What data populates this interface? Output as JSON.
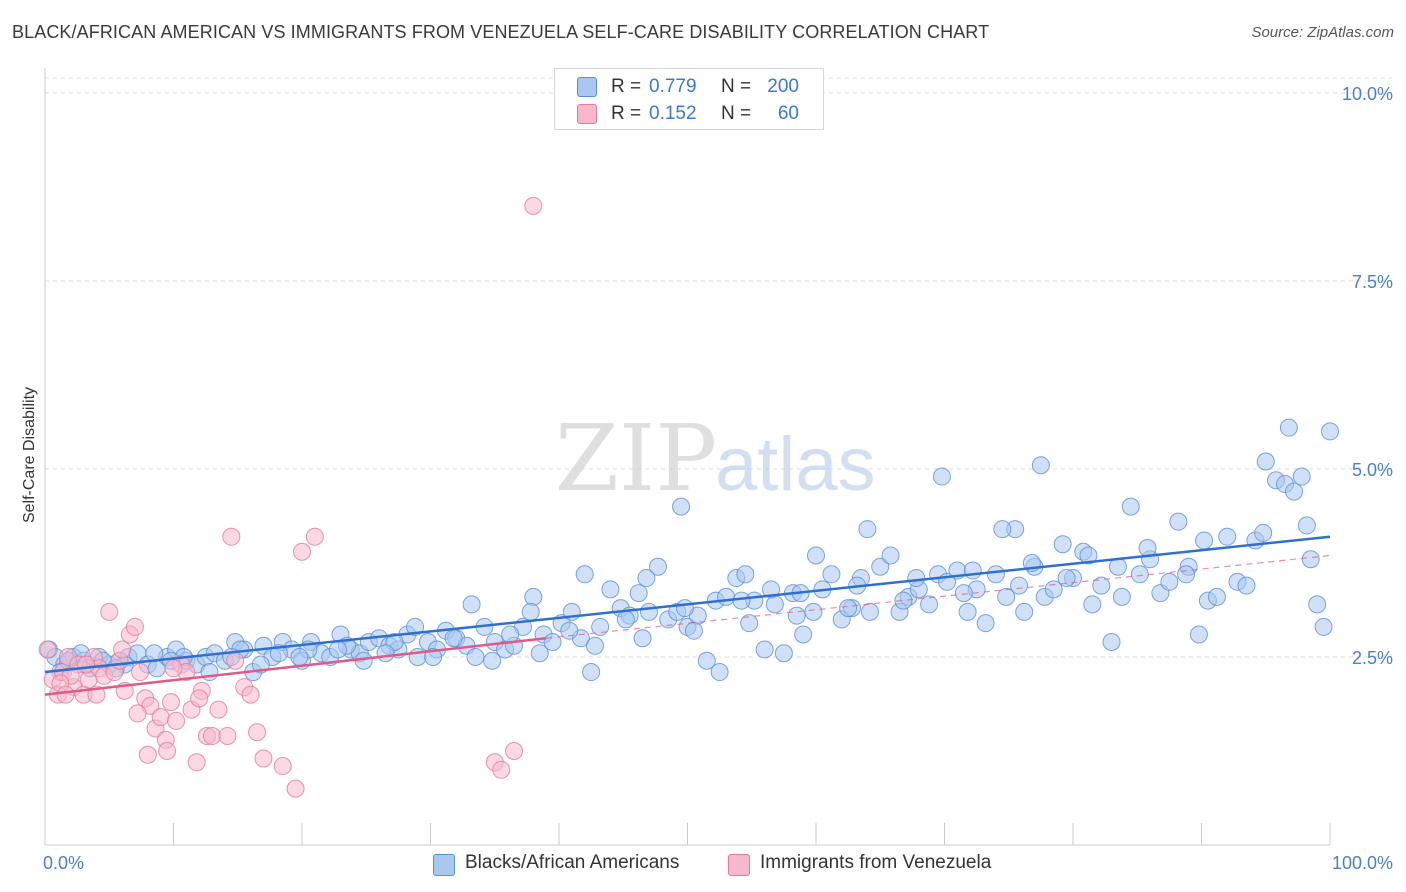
{
  "title": "BLACK/AFRICAN AMERICAN VS IMMIGRANTS FROM VENEZUELA SELF-CARE DISABILITY CORRELATION CHART",
  "source": "Source: ZipAtlas.com",
  "watermark": {
    "zip": "ZIP",
    "atlas": "atlas"
  },
  "legend": {
    "rows": [
      {
        "r_label": "R =",
        "r_value": "0.779",
        "n_label": "N =",
        "n_value": "200",
        "color": "#a9c8f0",
        "border": "#5b8fd6"
      },
      {
        "r_label": "R =",
        "r_value": "0.152",
        "n_label": "N =",
        "n_value": "60",
        "color": "#f7b8cc",
        "border": "#e07a9c"
      }
    ]
  },
  "chart_data": {
    "type": "scatter",
    "ylabel": "Self-Care Disability",
    "x_tick_labels": [
      "0.0%",
      "100.0%"
    ],
    "y_tick_labels": [
      "2.5%",
      "5.0%",
      "7.5%",
      "10.0%"
    ],
    "y_ticks": [
      2.5,
      5.0,
      7.5,
      10.0
    ],
    "xlim": [
      0,
      100
    ],
    "ylim": [
      0,
      10.2
    ],
    "grid": "dashed horizontal",
    "legend_placement": "top-center and bottom",
    "series": [
      {
        "name": "Blacks/African Americans",
        "color": "#a9c8f0",
        "edge": "#5b8fd6",
        "trend_color": "#2f6fd0",
        "trend": {
          "x0": 0,
          "y0": 2.3,
          "x1": 100,
          "y1": 4.1
        },
        "points": [
          [
            0.3,
            2.6
          ],
          [
            0.8,
            2.5
          ],
          [
            1.5,
            2.4
          ],
          [
            2.2,
            2.5
          ],
          [
            3,
            2.45
          ],
          [
            3.5,
            2.35
          ],
          [
            4.2,
            2.5
          ],
          [
            5,
            2.4
          ],
          [
            5.8,
            2.45
          ],
          [
            6.5,
            2.5
          ],
          [
            7.2,
            2.55
          ],
          [
            8,
            2.4
          ],
          [
            8.7,
            2.35
          ],
          [
            9.5,
            2.5
          ],
          [
            10.2,
            2.6
          ],
          [
            11,
            2.45
          ],
          [
            11.8,
            2.4
          ],
          [
            12.5,
            2.5
          ],
          [
            13.2,
            2.55
          ],
          [
            14,
            2.45
          ],
          [
            14.8,
            2.7
          ],
          [
            15.5,
            2.6
          ],
          [
            16.2,
            2.3
          ],
          [
            17,
            2.65
          ],
          [
            17.7,
            2.5
          ],
          [
            18.5,
            2.7
          ],
          [
            19.2,
            2.6
          ],
          [
            20,
            2.45
          ],
          [
            20.7,
            2.7
          ],
          [
            21.5,
            2.55
          ],
          [
            22.2,
            2.5
          ],
          [
            23,
            2.8
          ],
          [
            23.8,
            2.6
          ],
          [
            24.5,
            2.55
          ],
          [
            25.2,
            2.7
          ],
          [
            26,
            2.75
          ],
          [
            26.8,
            2.65
          ],
          [
            27.5,
            2.6
          ],
          [
            28.2,
            2.8
          ],
          [
            29,
            2.5
          ],
          [
            29.8,
            2.7
          ],
          [
            30.5,
            2.6
          ],
          [
            31.2,
            2.85
          ],
          [
            32,
            2.75
          ],
          [
            32.8,
            2.65
          ],
          [
            33.5,
            2.5
          ],
          [
            34.2,
            2.9
          ],
          [
            35,
            2.7
          ],
          [
            35.8,
            2.6
          ],
          [
            36.5,
            2.65
          ],
          [
            37.2,
            2.9
          ],
          [
            38,
            3.3
          ],
          [
            38.8,
            2.8
          ],
          [
            39.5,
            2.7
          ],
          [
            40.2,
            2.95
          ],
          [
            41,
            3.1
          ],
          [
            41.7,
            2.75
          ],
          [
            42.5,
            2.3
          ],
          [
            43.2,
            2.9
          ],
          [
            44,
            3.4
          ],
          [
            44.8,
            3.15
          ],
          [
            45.5,
            3.05
          ],
          [
            46.2,
            3.35
          ],
          [
            47,
            3.1
          ],
          [
            47.7,
            3.7
          ],
          [
            48.5,
            3.0
          ],
          [
            49.2,
            3.1
          ],
          [
            50,
            2.9
          ],
          [
            50.8,
            3.05
          ],
          [
            51.5,
            2.45
          ],
          [
            52.2,
            3.25
          ],
          [
            53,
            3.3
          ],
          [
            53.8,
            3.55
          ],
          [
            54.5,
            3.6
          ],
          [
            55.2,
            3.25
          ],
          [
            56,
            2.6
          ],
          [
            56.8,
            3.2
          ],
          [
            57.5,
            2.55
          ],
          [
            58.2,
            3.35
          ],
          [
            49.5,
            4.5
          ],
          [
            59,
            2.8
          ],
          [
            59.8,
            3.1
          ],
          [
            60.5,
            3.4
          ],
          [
            61.2,
            3.6
          ],
          [
            62,
            3.0
          ],
          [
            62.8,
            3.15
          ],
          [
            63.5,
            3.55
          ],
          [
            64.2,
            3.1
          ],
          [
            65,
            3.7
          ],
          [
            65.8,
            3.85
          ],
          [
            66.5,
            3.1
          ],
          [
            67.2,
            3.3
          ],
          [
            68,
            3.4
          ],
          [
            68.8,
            3.2
          ],
          [
            69.5,
            3.6
          ],
          [
            70.2,
            3.5
          ],
          [
            71,
            3.65
          ],
          [
            71.8,
            3.1
          ],
          [
            72.5,
            3.4
          ],
          [
            73.2,
            2.95
          ],
          [
            74,
            3.6
          ],
          [
            74.8,
            3.3
          ],
          [
            75.5,
            4.2
          ],
          [
            76.2,
            3.1
          ],
          [
            77,
            3.7
          ],
          [
            77.8,
            3.3
          ],
          [
            78.5,
            3.4
          ],
          [
            79.2,
            4.0
          ],
          [
            80,
            3.55
          ],
          [
            80.8,
            3.9
          ],
          [
            81.5,
            3.2
          ],
          [
            82.2,
            3.45
          ],
          [
            83,
            2.7
          ],
          [
            83.8,
            3.3
          ],
          [
            84.5,
            4.5
          ],
          [
            85.2,
            3.6
          ],
          [
            86,
            3.8
          ],
          [
            86.8,
            3.35
          ],
          [
            87.5,
            3.5
          ],
          [
            88.2,
            4.3
          ],
          [
            89,
            3.7
          ],
          [
            89.8,
            2.8
          ],
          [
            90.5,
            3.25
          ],
          [
            91.2,
            3.3
          ],
          [
            92,
            4.1
          ],
          [
            92.8,
            3.5
          ],
          [
            93.5,
            3.45
          ],
          [
            94.2,
            4.05
          ],
          [
            95,
            5.1
          ],
          [
            95.8,
            4.85
          ],
          [
            96.5,
            4.8
          ],
          [
            97.2,
            4.7
          ],
          [
            97.8,
            4.9
          ],
          [
            98.5,
            3.8
          ],
          [
            99,
            3.2
          ],
          [
            99.5,
            2.9
          ],
          [
            100,
            5.5
          ],
          [
            96.8,
            5.55
          ],
          [
            77.5,
            5.05
          ],
          [
            74.5,
            4.2
          ],
          [
            69.8,
            4.9
          ],
          [
            64,
            4.2
          ],
          [
            60,
            3.85
          ],
          [
            56.5,
            3.4
          ],
          [
            52.5,
            2.3
          ],
          [
            46.8,
            3.55
          ],
          [
            42,
            3.6
          ],
          [
            37.8,
            3.1
          ],
          [
            33.2,
            3.2
          ],
          [
            28.8,
            2.9
          ],
          [
            24.8,
            2.45
          ],
          [
            20.5,
            2.6
          ],
          [
            16.8,
            2.4
          ],
          [
            12.8,
            2.3
          ],
          [
            8.5,
            2.55
          ],
          [
            4.5,
            2.45
          ],
          [
            1.2,
            2.3
          ],
          [
            2.8,
            2.55
          ],
          [
            6.2,
            2.4
          ],
          [
            10.8,
            2.5
          ],
          [
            15.2,
            2.6
          ],
          [
            19.8,
            2.5
          ],
          [
            23.5,
            2.65
          ],
          [
            27.2,
            2.7
          ],
          [
            31.8,
            2.75
          ],
          [
            36.2,
            2.8
          ],
          [
            40.8,
            2.85
          ],
          [
            45.2,
            3.0
          ],
          [
            49.8,
            3.15
          ],
          [
            54.2,
            3.25
          ],
          [
            58.8,
            3.35
          ],
          [
            63.2,
            3.45
          ],
          [
            67.8,
            3.55
          ],
          [
            72.2,
            3.65
          ],
          [
            76.8,
            3.75
          ],
          [
            81.2,
            3.85
          ],
          [
            85.8,
            3.95
          ],
          [
            90.2,
            4.05
          ],
          [
            94.8,
            4.15
          ],
          [
            98.2,
            4.25
          ],
          [
            88.8,
            3.6
          ],
          [
            83.5,
            3.7
          ],
          [
            79.5,
            3.55
          ],
          [
            75.8,
            3.45
          ],
          [
            71.5,
            3.35
          ],
          [
            66.8,
            3.25
          ],
          [
            62.5,
            3.15
          ],
          [
            58.5,
            3.05
          ],
          [
            54.8,
            2.95
          ],
          [
            50.5,
            2.85
          ],
          [
            46.5,
            2.75
          ],
          [
            42.8,
            2.65
          ],
          [
            38.5,
            2.55
          ],
          [
            34.8,
            2.45
          ],
          [
            30.2,
            2.5
          ],
          [
            26.5,
            2.55
          ],
          [
            22.8,
            2.6
          ],
          [
            18.2,
            2.55
          ],
          [
            14.5,
            2.5
          ],
          [
            9.8,
            2.45
          ],
          [
            5.5,
            2.35
          ],
          [
            1.8,
            2.45
          ]
        ]
      },
      {
        "name": "Immigrants from Venezuela",
        "color": "#f7b8cc",
        "edge": "#e07a9c",
        "trend_color": "#e05a88",
        "trend": {
          "x0": 0,
          "y0": 2.0,
          "x1": 39,
          "y1": 2.75
        },
        "trend_dashed": {
          "x0": 39,
          "y0": 2.75,
          "x1": 100,
          "y1": 3.85
        },
        "points": [
          [
            0.2,
            2.6
          ],
          [
            0.6,
            2.2
          ],
          [
            1.0,
            2.0
          ],
          [
            1.4,
            2.3
          ],
          [
            1.8,
            2.5
          ],
          [
            2.2,
            2.1
          ],
          [
            2.6,
            2.4
          ],
          [
            3.0,
            2.0
          ],
          [
            3.4,
            2.2
          ],
          [
            3.8,
            2.5
          ],
          [
            4.2,
            2.35
          ],
          [
            4.6,
            2.25
          ],
          [
            5.0,
            3.1
          ],
          [
            5.4,
            2.3
          ],
          [
            5.8,
            2.45
          ],
          [
            6.2,
            2.05
          ],
          [
            6.6,
            2.8
          ],
          [
            7.0,
            2.9
          ],
          [
            7.4,
            2.3
          ],
          [
            7.8,
            1.95
          ],
          [
            8.2,
            1.85
          ],
          [
            8.6,
            1.55
          ],
          [
            9.0,
            1.7
          ],
          [
            9.4,
            1.4
          ],
          [
            9.8,
            1.9
          ],
          [
            10.2,
            1.65
          ],
          [
            10.6,
            2.4
          ],
          [
            11.0,
            2.3
          ],
          [
            11.4,
            1.8
          ],
          [
            11.8,
            1.1
          ],
          [
            12.2,
            2.05
          ],
          [
            12.6,
            1.45
          ],
          [
            13.0,
            1.45
          ],
          [
            14.2,
            1.45
          ],
          [
            14.8,
            2.45
          ],
          [
            15.5,
            2.1
          ],
          [
            16.5,
            1.5
          ],
          [
            17.0,
            1.15
          ],
          [
            18.5,
            1.05
          ],
          [
            19.5,
            0.75
          ],
          [
            20.0,
            3.9
          ],
          [
            35.0,
            1.1
          ],
          [
            35.5,
            1.0
          ],
          [
            36.5,
            1.25
          ],
          [
            38.0,
            8.5
          ],
          [
            21.0,
            4.1
          ],
          [
            14.5,
            4.1
          ],
          [
            9.5,
            1.25
          ],
          [
            8.0,
            1.2
          ],
          [
            7.2,
            1.75
          ],
          [
            3.2,
            2.4
          ],
          [
            2.0,
            2.25
          ],
          [
            1.2,
            2.15
          ],
          [
            4.0,
            2.0
          ],
          [
            6.0,
            2.6
          ],
          [
            10.0,
            2.35
          ],
          [
            12.0,
            1.95
          ],
          [
            13.5,
            1.8
          ],
          [
            16.0,
            2.0
          ],
          [
            1.6,
            2.0
          ]
        ]
      }
    ]
  }
}
